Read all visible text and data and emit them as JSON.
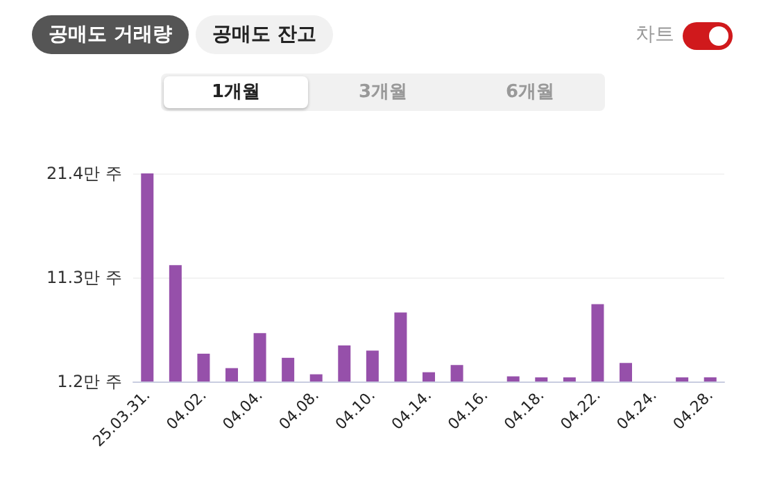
{
  "chart_data": {
    "type": "bar",
    "categories": [
      "25.03.31.",
      null,
      "04.02.",
      null,
      "04.04.",
      null,
      "04.08.",
      null,
      "04.10.",
      null,
      "04.14.",
      null,
      "04.16.",
      null,
      "04.18.",
      null,
      "04.22.",
      null,
      "04.24.",
      null,
      "04.28."
    ],
    "values": [
      21.4,
      12.5,
      3.9,
      2.5,
      5.9,
      3.5,
      1.9,
      4.7,
      4.2,
      7.9,
      2.1,
      2.8,
      1.2,
      1.7,
      1.6,
      1.6,
      8.7,
      3.0,
      1.2,
      1.6,
      1.6
    ],
    "color": "#9650aa",
    "ylim": [
      1.2,
      21.4
    ],
    "yticks": [
      {
        "value": 1.2,
        "label": "1.2만 주"
      },
      {
        "value": 11.3,
        "label": "11.3만 주"
      },
      {
        "value": 21.4,
        "label": "21.4만 주"
      }
    ],
    "grid": "y",
    "annotations": [
      "공매도 거래량",
      "공매도 잔고",
      "차트",
      "1개월",
      "3개월",
      "6개월"
    ]
  }
}
